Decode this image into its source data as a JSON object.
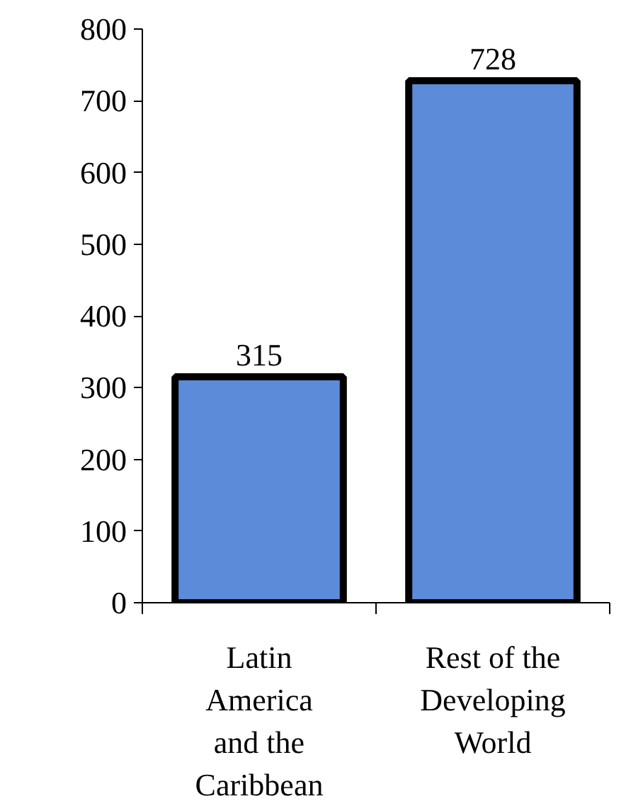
{
  "chart_data": {
    "type": "bar",
    "categories": [
      "Latin\nAmerica\nand the\nCaribbean",
      "Rest of the\nDeveloping\nWorld"
    ],
    "values": [
      315,
      728
    ],
    "color": "#5b8bd9",
    "ylim": [
      0,
      800
    ],
    "yticks": [
      0,
      100,
      200,
      300,
      400,
      500,
      600,
      700,
      800
    ],
    "grid": false,
    "data_labels": true
  }
}
